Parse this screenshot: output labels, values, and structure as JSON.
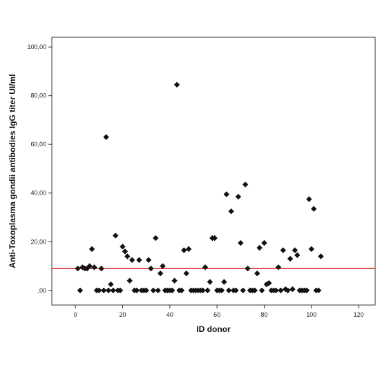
{
  "chart_data": {
    "type": "scatter",
    "xlabel": "ID donor",
    "ylabel": "Anti-Toxoplasma gondii antibodies IgG titer UI/ml",
    "xlim": [
      -10,
      127
    ],
    "ylim": [
      -6,
      104
    ],
    "x_ticks": [
      "0",
      "20",
      "40",
      "60",
      "80",
      "100",
      "120"
    ],
    "x_tick_values": [
      0,
      20,
      40,
      60,
      80,
      100,
      120
    ],
    "y_ticks": [
      ",00",
      "20,00",
      "40,00",
      "60,00",
      "80,00",
      "100,00"
    ],
    "y_tick_values": [
      0,
      20,
      40,
      60,
      80,
      100
    ],
    "grid": false,
    "reference_line": {
      "y": 9,
      "color": "#d32f2f"
    },
    "marker": {
      "shape": "diamond",
      "color": "#111111"
    },
    "points": [
      {
        "x": 1,
        "y": 9
      },
      {
        "x": 2,
        "y": 0
      },
      {
        "x": 3,
        "y": 9.5
      },
      {
        "x": 4,
        "y": 9
      },
      {
        "x": 5,
        "y": 9
      },
      {
        "x": 6,
        "y": 10
      },
      {
        "x": 7,
        "y": 17
      },
      {
        "x": 8,
        "y": 9.5
      },
      {
        "x": 9,
        "y": 0
      },
      {
        "x": 10,
        "y": 0
      },
      {
        "x": 11,
        "y": 9
      },
      {
        "x": 12,
        "y": 0
      },
      {
        "x": 13,
        "y": 63
      },
      {
        "x": 14,
        "y": 0
      },
      {
        "x": 15,
        "y": 2.5
      },
      {
        "x": 16,
        "y": 0
      },
      {
        "x": 17,
        "y": 22.5
      },
      {
        "x": 18,
        "y": 0
      },
      {
        "x": 19,
        "y": 0
      },
      {
        "x": 20,
        "y": 18
      },
      {
        "x": 21,
        "y": 16
      },
      {
        "x": 22,
        "y": 14
      },
      {
        "x": 23,
        "y": 4
      },
      {
        "x": 24,
        "y": 12.5
      },
      {
        "x": 25,
        "y": 0
      },
      {
        "x": 26,
        "y": 0
      },
      {
        "x": 27,
        "y": 12.5
      },
      {
        "x": 28,
        "y": 0
      },
      {
        "x": 29,
        "y": 0
      },
      {
        "x": 30,
        "y": 0
      },
      {
        "x": 31,
        "y": 12.5
      },
      {
        "x": 32,
        "y": 9
      },
      {
        "x": 33,
        "y": 0
      },
      {
        "x": 34,
        "y": 21.5
      },
      {
        "x": 35,
        "y": 0
      },
      {
        "x": 36,
        "y": 7
      },
      {
        "x": 37,
        "y": 10
      },
      {
        "x": 38,
        "y": 0
      },
      {
        "x": 39,
        "y": 0
      },
      {
        "x": 40,
        "y": 0
      },
      {
        "x": 41,
        "y": 0
      },
      {
        "x": 42,
        "y": 4
      },
      {
        "x": 43,
        "y": 84.5
      },
      {
        "x": 44,
        "y": 0
      },
      {
        "x": 45,
        "y": 0
      },
      {
        "x": 46,
        "y": 16.5
      },
      {
        "x": 47,
        "y": 7
      },
      {
        "x": 48,
        "y": 17
      },
      {
        "x": 49,
        "y": 0
      },
      {
        "x": 50,
        "y": 0
      },
      {
        "x": 51,
        "y": 0
      },
      {
        "x": 52,
        "y": 0
      },
      {
        "x": 53,
        "y": 0
      },
      {
        "x": 54,
        "y": 0
      },
      {
        "x": 55,
        "y": 9.5
      },
      {
        "x": 56,
        "y": 0
      },
      {
        "x": 57,
        "y": 3.5
      },
      {
        "x": 58,
        "y": 21.5
      },
      {
        "x": 59,
        "y": 21.5
      },
      {
        "x": 60,
        "y": 0
      },
      {
        "x": 61,
        "y": 0
      },
      {
        "x": 62,
        "y": 0
      },
      {
        "x": 63,
        "y": 3.5
      },
      {
        "x": 64,
        "y": 39.5
      },
      {
        "x": 65,
        "y": 0
      },
      {
        "x": 66,
        "y": 32.5
      },
      {
        "x": 67,
        "y": 0
      },
      {
        "x": 68,
        "y": 0
      },
      {
        "x": 69,
        "y": 38.5
      },
      {
        "x": 70,
        "y": 19.5
      },
      {
        "x": 71,
        "y": 0
      },
      {
        "x": 72,
        "y": 43.5
      },
      {
        "x": 73,
        "y": 9
      },
      {
        "x": 74,
        "y": 0
      },
      {
        "x": 75,
        "y": 0
      },
      {
        "x": 76,
        "y": 0
      },
      {
        "x": 77,
        "y": 7
      },
      {
        "x": 78,
        "y": 17.5
      },
      {
        "x": 79,
        "y": 0
      },
      {
        "x": 80,
        "y": 19.5
      },
      {
        "x": 81,
        "y": 2.5
      },
      {
        "x": 82,
        "y": 3
      },
      {
        "x": 83,
        "y": 0
      },
      {
        "x": 84,
        "y": 0
      },
      {
        "x": 85,
        "y": 0
      },
      {
        "x": 86,
        "y": 9.5
      },
      {
        "x": 87,
        "y": 0
      },
      {
        "x": 88,
        "y": 16.5
      },
      {
        "x": 89,
        "y": 0.5
      },
      {
        "x": 90,
        "y": 0
      },
      {
        "x": 91,
        "y": 13
      },
      {
        "x": 92,
        "y": 0.5
      },
      {
        "x": 93,
        "y": 16.5
      },
      {
        "x": 94,
        "y": 14.5
      },
      {
        "x": 95,
        "y": 0
      },
      {
        "x": 96,
        "y": 0
      },
      {
        "x": 97,
        "y": 0
      },
      {
        "x": 98,
        "y": 0
      },
      {
        "x": 99,
        "y": 37.5
      },
      {
        "x": 100,
        "y": 17
      },
      {
        "x": 101,
        "y": 33.5
      },
      {
        "x": 102,
        "y": 0
      },
      {
        "x": 103,
        "y": 0
      },
      {
        "x": 104,
        "y": 14
      }
    ]
  }
}
